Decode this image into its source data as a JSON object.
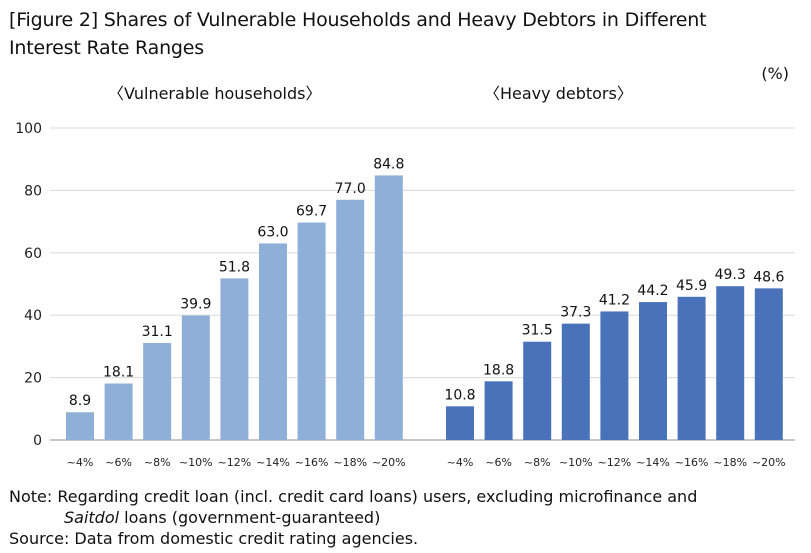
{
  "title_line1": "[Figure 2] Shares of Vulnerable Households and Heavy Debtors in Different",
  "title_line2": "Interest Rate Ranges",
  "unit": "(%)",
  "chart_data": {
    "type": "bar",
    "ylim": [
      0,
      100
    ],
    "yticks": [
      "100",
      "80",
      "60",
      "40",
      "20",
      "0"
    ],
    "categories": [
      "~4%",
      "~6%",
      "~8%",
      "~10%",
      "~12%",
      "~14%",
      "~16%",
      "~18%",
      "~20%"
    ],
    "grid": "horizontal",
    "groups": [
      {
        "label": "〈Vulnerable households〉",
        "color": "#8eafd8",
        "values": [
          8.9,
          18.1,
          31.1,
          39.9,
          51.8,
          63.0,
          69.7,
          77.0,
          84.8
        ],
        "value_labels": [
          "8.9",
          "18.1",
          "31.1",
          "39.9",
          "51.8",
          "63.0",
          "69.7",
          "77.0",
          "84.8"
        ]
      },
      {
        "label": "〈Heavy debtors〉",
        "color": "#4a72bb",
        "values": [
          10.8,
          18.8,
          31.5,
          37.3,
          41.2,
          44.2,
          45.9,
          49.3,
          48.6
        ],
        "value_labels": [
          "10.8",
          "18.8",
          "31.5",
          "37.3",
          "41.2",
          "44.2",
          "45.9",
          "49.3",
          "48.6"
        ]
      }
    ]
  },
  "note_prefix": "Note: Regarding credit loan (incl. credit card loans) users, excluding microfinance and",
  "note_italic": "Saitdol",
  "note_suffix": " loans (government-guaranteed)",
  "source": "Source: Data from domestic credit rating agencies."
}
